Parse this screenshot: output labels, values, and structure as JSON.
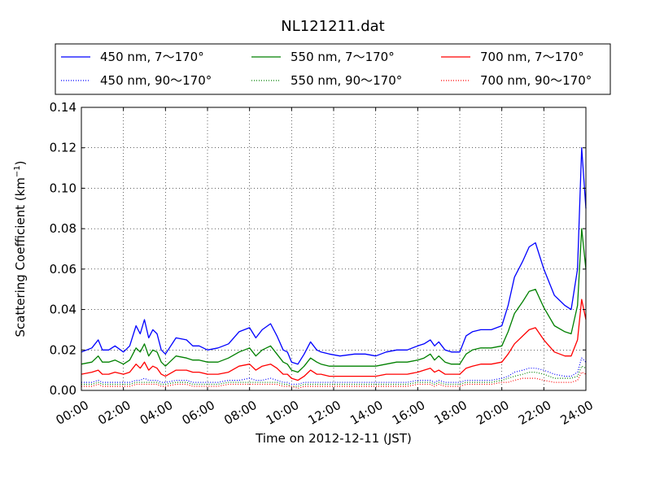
{
  "chart_data": {
    "type": "line",
    "title": "NL121211.dat",
    "xlabel": "Time on 2012-12-11 (JST)",
    "ylabel": "Scattering Coefficient (km",
    "ylabel_sup": "−1",
    "ylabel_end": ")",
    "x_unit": "hours",
    "xlim": [
      0,
      24
    ],
    "ylim": [
      0,
      0.14
    ],
    "x_ticks": [
      0,
      2,
      4,
      6,
      8,
      10,
      12,
      14,
      16,
      18,
      20,
      22,
      24
    ],
    "x_tick_labels": [
      "00:00",
      "02:00",
      "04:00",
      "06:00",
      "08:00",
      "10:00",
      "12:00",
      "14:00",
      "16:00",
      "18:00",
      "20:00",
      "22:00",
      "24:00"
    ],
    "y_ticks": [
      0,
      0.02,
      0.04,
      0.06,
      0.08,
      0.1,
      0.12,
      0.14
    ],
    "y_tick_labels": [
      "0.00",
      "0.02",
      "0.04",
      "0.06",
      "0.08",
      "0.10",
      "0.12",
      "0.14"
    ],
    "grid": true,
    "legend_position": "top, above plot",
    "x": [
      0,
      0.5,
      0.8,
      1.0,
      1.3,
      1.6,
      2.0,
      2.3,
      2.6,
      2.8,
      3.0,
      3.2,
      3.4,
      3.6,
      3.8,
      4.0,
      4.5,
      5.0,
      5.3,
      5.6,
      6.0,
      6.5,
      7.0,
      7.5,
      8.0,
      8.3,
      8.6,
      9.0,
      9.3,
      9.6,
      9.8,
      10.0,
      10.3,
      10.6,
      10.9,
      11.2,
      11.4,
      11.8,
      12.3,
      13.0,
      13.5,
      14.0,
      14.5,
      15.0,
      15.5,
      16.0,
      16.3,
      16.6,
      16.8,
      17.0,
      17.3,
      17.6,
      18.0,
      18.3,
      18.6,
      19.0,
      19.5,
      20.0,
      20.3,
      20.6,
      21.0,
      21.3,
      21.6,
      22.0,
      22.5,
      23.0,
      23.3,
      23.6,
      23.8,
      24.0
    ],
    "series": [
      {
        "name": "450 nm, 7～170°",
        "color": "#0000ff",
        "style": "solid",
        "values": [
          0.019,
          0.021,
          0.025,
          0.02,
          0.02,
          0.022,
          0.019,
          0.022,
          0.032,
          0.028,
          0.035,
          0.026,
          0.03,
          0.028,
          0.02,
          0.018,
          0.026,
          0.025,
          0.022,
          0.022,
          0.02,
          0.021,
          0.023,
          0.029,
          0.031,
          0.026,
          0.03,
          0.033,
          0.027,
          0.02,
          0.019,
          0.014,
          0.013,
          0.018,
          0.024,
          0.02,
          0.019,
          0.018,
          0.017,
          0.018,
          0.018,
          0.017,
          0.019,
          0.02,
          0.02,
          0.022,
          0.023,
          0.025,
          0.022,
          0.024,
          0.02,
          0.019,
          0.019,
          0.027,
          0.029,
          0.03,
          0.03,
          0.032,
          0.042,
          0.056,
          0.064,
          0.071,
          0.073,
          0.06,
          0.047,
          0.042,
          0.04,
          0.06,
          0.12,
          0.09
        ]
      },
      {
        "name": "550 nm, 7～170°",
        "color": "#008000",
        "style": "solid",
        "values": [
          0.013,
          0.014,
          0.017,
          0.014,
          0.014,
          0.015,
          0.013,
          0.015,
          0.021,
          0.019,
          0.023,
          0.017,
          0.02,
          0.019,
          0.014,
          0.012,
          0.017,
          0.016,
          0.015,
          0.015,
          0.014,
          0.014,
          0.016,
          0.019,
          0.021,
          0.017,
          0.02,
          0.022,
          0.018,
          0.014,
          0.013,
          0.01,
          0.009,
          0.012,
          0.016,
          0.014,
          0.013,
          0.012,
          0.012,
          0.012,
          0.012,
          0.012,
          0.013,
          0.014,
          0.014,
          0.015,
          0.016,
          0.018,
          0.015,
          0.017,
          0.014,
          0.013,
          0.013,
          0.018,
          0.02,
          0.021,
          0.021,
          0.022,
          0.029,
          0.038,
          0.044,
          0.049,
          0.05,
          0.041,
          0.032,
          0.029,
          0.028,
          0.042,
          0.08,
          0.06
        ]
      },
      {
        "name": "700 nm, 7～170°",
        "color": "#ff0000",
        "style": "solid",
        "values": [
          0.008,
          0.009,
          0.01,
          0.008,
          0.008,
          0.009,
          0.008,
          0.009,
          0.013,
          0.011,
          0.014,
          0.01,
          0.012,
          0.011,
          0.008,
          0.007,
          0.01,
          0.01,
          0.009,
          0.009,
          0.008,
          0.008,
          0.009,
          0.012,
          0.013,
          0.01,
          0.012,
          0.013,
          0.011,
          0.008,
          0.008,
          0.006,
          0.005,
          0.007,
          0.01,
          0.008,
          0.008,
          0.007,
          0.007,
          0.007,
          0.007,
          0.007,
          0.008,
          0.008,
          0.008,
          0.009,
          0.01,
          0.011,
          0.009,
          0.01,
          0.008,
          0.008,
          0.008,
          0.011,
          0.012,
          0.013,
          0.013,
          0.014,
          0.018,
          0.023,
          0.027,
          0.03,
          0.031,
          0.025,
          0.019,
          0.017,
          0.017,
          0.025,
          0.045,
          0.035
        ]
      },
      {
        "name": "450 nm, 90～170°",
        "color": "#0000ff",
        "style": "dotted",
        "values": [
          0.004,
          0.004,
          0.005,
          0.004,
          0.004,
          0.004,
          0.004,
          0.004,
          0.005,
          0.005,
          0.006,
          0.005,
          0.005,
          0.005,
          0.004,
          0.004,
          0.005,
          0.005,
          0.004,
          0.004,
          0.004,
          0.004,
          0.005,
          0.005,
          0.006,
          0.005,
          0.005,
          0.006,
          0.005,
          0.004,
          0.004,
          0.003,
          0.003,
          0.004,
          0.004,
          0.004,
          0.004,
          0.004,
          0.004,
          0.004,
          0.004,
          0.004,
          0.004,
          0.004,
          0.004,
          0.005,
          0.005,
          0.005,
          0.004,
          0.005,
          0.004,
          0.004,
          0.004,
          0.005,
          0.005,
          0.005,
          0.005,
          0.006,
          0.007,
          0.009,
          0.01,
          0.011,
          0.011,
          0.01,
          0.008,
          0.007,
          0.007,
          0.009,
          0.016,
          0.014
        ]
      },
      {
        "name": "550 nm, 90～170°",
        "color": "#008000",
        "style": "dotted",
        "values": [
          0.003,
          0.003,
          0.004,
          0.003,
          0.003,
          0.003,
          0.003,
          0.003,
          0.004,
          0.004,
          0.004,
          0.004,
          0.004,
          0.004,
          0.003,
          0.003,
          0.004,
          0.004,
          0.003,
          0.003,
          0.003,
          0.003,
          0.004,
          0.004,
          0.004,
          0.004,
          0.004,
          0.004,
          0.004,
          0.003,
          0.003,
          0.002,
          0.002,
          0.003,
          0.003,
          0.003,
          0.003,
          0.003,
          0.003,
          0.003,
          0.003,
          0.003,
          0.003,
          0.003,
          0.003,
          0.004,
          0.004,
          0.004,
          0.003,
          0.004,
          0.003,
          0.003,
          0.003,
          0.004,
          0.004,
          0.004,
          0.004,
          0.005,
          0.006,
          0.007,
          0.008,
          0.009,
          0.009,
          0.008,
          0.006,
          0.006,
          0.006,
          0.007,
          0.012,
          0.011
        ]
      },
      {
        "name": "700 nm, 90～170°",
        "color": "#ff0000",
        "style": "dotted",
        "values": [
          0.002,
          0.002,
          0.003,
          0.002,
          0.002,
          0.002,
          0.002,
          0.002,
          0.003,
          0.003,
          0.003,
          0.003,
          0.003,
          0.003,
          0.002,
          0.002,
          0.003,
          0.003,
          0.002,
          0.002,
          0.002,
          0.002,
          0.003,
          0.003,
          0.003,
          0.003,
          0.003,
          0.003,
          0.003,
          0.002,
          0.002,
          0.002,
          0.001,
          0.002,
          0.002,
          0.002,
          0.002,
          0.002,
          0.002,
          0.002,
          0.002,
          0.002,
          0.002,
          0.002,
          0.002,
          0.003,
          0.003,
          0.003,
          0.002,
          0.003,
          0.002,
          0.002,
          0.002,
          0.003,
          0.003,
          0.003,
          0.003,
          0.004,
          0.004,
          0.005,
          0.006,
          0.006,
          0.006,
          0.005,
          0.004,
          0.004,
          0.004,
          0.005,
          0.009,
          0.008
        ]
      }
    ]
  }
}
